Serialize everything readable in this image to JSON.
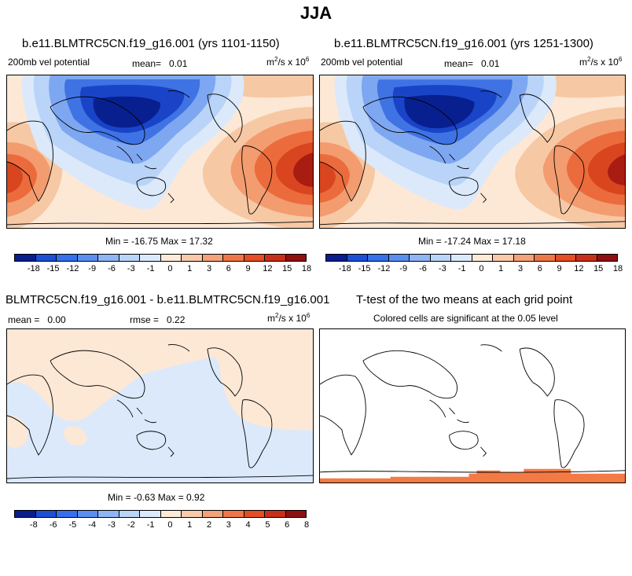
{
  "main_title": "JJA",
  "panels": {
    "top_left": {
      "title": "b.e11.BLMTRC5CN.f19_g16.001 (yrs 1101-1150)",
      "variable": "200mb vel potential",
      "mean_label": "mean=",
      "mean_value": "0.01",
      "units_base": "m",
      "units_exp": "2",
      "units_mid": "/s x 10",
      "units_exp2": "6",
      "minmax": "Min = -16.75 Max = 17.32"
    },
    "top_right": {
      "title": "b.e11.BLMTRC5CN.f19_g16.001 (yrs 1251-1300)",
      "variable": "200mb vel potential",
      "mean_label": "mean=",
      "mean_value": "0.01",
      "units_base": "m",
      "units_exp": "2",
      "units_mid": "/s x 10",
      "units_exp2": "6",
      "minmax": "Min = -17.24 Max = 17.18"
    },
    "bottom_left": {
      "title": "BLMTRC5CN.f19_g16.001 - b.e11.BLMTRC5CN.f19_g16.001",
      "mean_label": "mean =",
      "mean_value": "0.00",
      "rmse_label": "rmse =",
      "rmse_value": "0.22",
      "units_base": "m",
      "units_exp": "2",
      "units_mid": "/s x 10",
      "units_exp2": "6",
      "minmax": "Min = -0.63 Max = 0.92"
    },
    "bottom_right": {
      "title": "T-test of the two means at each grid point",
      "subtitle": "Colored cells are significant at the 0.05 level"
    }
  },
  "colorbar_top": {
    "colors": [
      "#0a1d8c",
      "#1c4fd4",
      "#3670ea",
      "#5a8ef0",
      "#8fb5f5",
      "#b9d5f8",
      "#dbeafb",
      "#fdebd8",
      "#f8caa9",
      "#f4a27a",
      "#ee7648",
      "#e34e24",
      "#c6301a",
      "#8f1010"
    ],
    "labels": [
      "-18",
      "-15",
      "-12",
      "-9",
      "-6",
      "-3",
      "-1",
      "0",
      "1",
      "3",
      "6",
      "9",
      "12",
      "15",
      "18"
    ]
  },
  "colorbar_bottom": {
    "colors": [
      "#0a1d8c",
      "#1c4fd4",
      "#3670ea",
      "#5a8ef0",
      "#8fb5f5",
      "#b9d5f8",
      "#dbeafb",
      "#fdebd8",
      "#f8caa9",
      "#f4a27a",
      "#ee7648",
      "#e34e24",
      "#c6301a",
      "#8f1010"
    ],
    "labels": [
      "-8",
      "-6",
      "-5",
      "-4",
      "-3",
      "-2",
      "-1",
      "0",
      "1",
      "2",
      "3",
      "4",
      "5",
      "6",
      "8"
    ]
  },
  "colors": {
    "blue_deep": "#08208f",
    "blue_dark": "#1a44c8",
    "blue_mid": "#3f73e4",
    "blue_light": "#7ea7f1",
    "blue_pale": "#b9d4f8",
    "blue_faint": "#dbe9fb",
    "orange_faint": "#fde8d6",
    "orange_pale": "#f7c8a4",
    "orange_light": "#f29c6f",
    "orange_mid": "#eb6b3c",
    "orange_dark": "#d8451f",
    "red_dark": "#a91c12",
    "sig_orange": "#f47a45"
  }
}
